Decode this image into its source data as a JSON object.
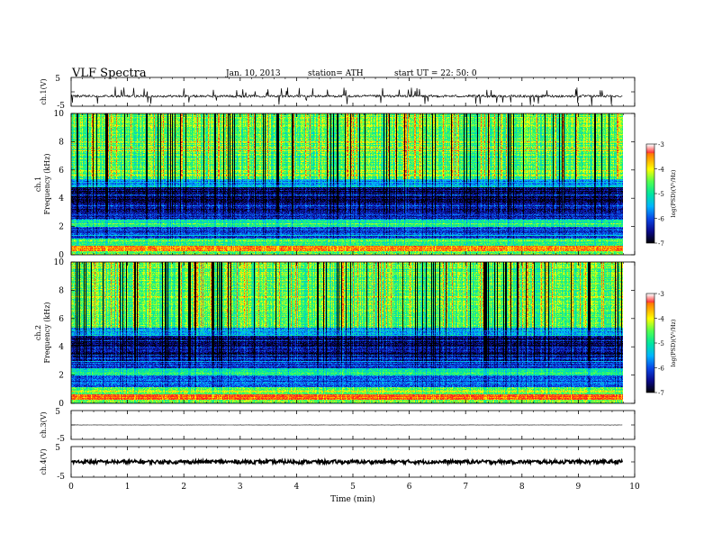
{
  "header": {
    "title": "VLF  Spectra",
    "date": "Jan. 10, 2013",
    "station": "station= ATH",
    "start": "start  UT  =   22: 50: 0"
  },
  "colors": {
    "colormap": [
      "#000000",
      "#0a0a8c",
      "#0a46e6",
      "#00b4ff",
      "#00e6a0",
      "#50ff50",
      "#ffff00",
      "#ff9600",
      "#ff2020",
      "#ffffff"
    ]
  },
  "chart_data": [
    {
      "type": "line",
      "panel": "ch1",
      "ylabel": "ch.1(V)",
      "ylim": [
        -5,
        5
      ],
      "yticks": [
        "5",
        "-5"
      ],
      "xlim": [
        0,
        10
      ],
      "note_values": "approximate noisy trace around -1.5 V with frequent spikes",
      "series": [
        {
          "baseline": -1.5,
          "noise": 0.4,
          "spikes": 60
        }
      ]
    },
    {
      "type": "heatmap",
      "panel": "ch1-spectrogram",
      "ylabel": "ch.1\nFrequency  (kHz)",
      "ylim": [
        0,
        10
      ],
      "yticks": [
        "0",
        "2",
        "4",
        "6",
        "8",
        "10"
      ],
      "xlim": [
        0,
        9.8
      ],
      "colorbar": {
        "label": "log(PSD)(V²/Hz)",
        "range": [
          -7,
          -3
        ],
        "ticks": [
          "-3",
          "-4",
          "-5",
          "-6",
          "-7"
        ]
      },
      "bands_khz": [
        {
          "from": 0,
          "to": 0.3,
          "level": -4.5
        },
        {
          "from": 0.3,
          "to": 0.7,
          "level": -3.3
        },
        {
          "from": 0.7,
          "to": 1.2,
          "level": -4.6
        },
        {
          "from": 1.2,
          "to": 2.0,
          "level": -6.0
        },
        {
          "from": 2.0,
          "to": 2.5,
          "level": -5.0
        },
        {
          "from": 2.5,
          "to": 3.0,
          "level": -6.2
        },
        {
          "from": 3.0,
          "to": 4.8,
          "level": -6.6
        },
        {
          "from": 4.8,
          "to": 5.4,
          "level": -5.6
        },
        {
          "from": 5.4,
          "to": 10,
          "level": -4.6
        }
      ]
    },
    {
      "type": "heatmap",
      "panel": "ch2-spectrogram",
      "ylabel": "ch.2\nFrequency  (kHz)",
      "ylim": [
        0,
        10
      ],
      "yticks": [
        "0",
        "2",
        "4",
        "6",
        "8",
        "10"
      ],
      "xlim": [
        0,
        9.8
      ],
      "colorbar": {
        "label": "log(PSD)(V²/Hz)",
        "range": [
          -7,
          -3
        ],
        "ticks": [
          "-3",
          "-4",
          "-5",
          "-6",
          "-7"
        ]
      },
      "bands_khz": [
        {
          "from": 0,
          "to": 0.3,
          "level": -4.5
        },
        {
          "from": 0.3,
          "to": 0.7,
          "level": -3.3
        },
        {
          "from": 0.7,
          "to": 1.2,
          "level": -4.6
        },
        {
          "from": 1.2,
          "to": 2.0,
          "level": -6.0
        },
        {
          "from": 2.0,
          "to": 2.5,
          "level": -5.0
        },
        {
          "from": 2.5,
          "to": 3.0,
          "level": -6.2
        },
        {
          "from": 3.0,
          "to": 4.8,
          "level": -6.6
        },
        {
          "from": 4.8,
          "to": 5.4,
          "level": -5.6
        },
        {
          "from": 5.4,
          "to": 10,
          "level": -4.6
        }
      ]
    },
    {
      "type": "line",
      "panel": "ch3",
      "ylabel": "ch.3(V)",
      "ylim": [
        -5,
        5
      ],
      "yticks": [
        "5",
        "-5"
      ],
      "xlim": [
        0,
        10
      ],
      "series": [
        {
          "baseline": 0,
          "noise": 0.05,
          "spikes": 0
        }
      ]
    },
    {
      "type": "line",
      "panel": "ch4",
      "ylabel": "ch.4(V)",
      "ylim": [
        -5,
        5
      ],
      "yticks": [
        "5",
        "-5"
      ],
      "xlim": [
        0,
        10
      ],
      "xlabel": "Time  (min)",
      "xticks": [
        "0",
        "1",
        "2",
        "3",
        "4",
        "5",
        "6",
        "7",
        "8",
        "9",
        "10"
      ],
      "series": [
        {
          "baseline": 0,
          "noise": 0.6,
          "spikes": 0
        }
      ]
    }
  ]
}
